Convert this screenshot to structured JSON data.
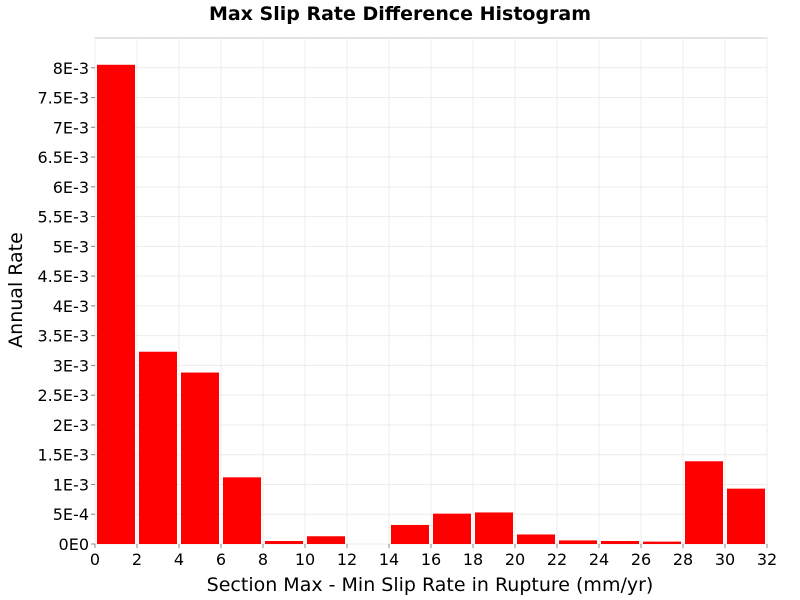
{
  "chart_data": {
    "type": "bar",
    "title": "Max Slip Rate Difference Histogram",
    "xlabel": "Section Max - Min Slip Rate in Rupture (mm/yr)",
    "ylabel": "Annual Rate",
    "xlim": [
      0,
      32
    ],
    "ylim": [
      0,
      0.0085
    ],
    "bin_width": 2,
    "bin_centers": [
      1,
      3,
      5,
      7,
      9,
      11,
      13,
      15,
      17,
      19,
      21,
      23,
      25,
      27,
      29,
      31
    ],
    "values": [
      0.00805,
      0.00323,
      0.00288,
      0.00112,
      5e-05,
      0.00013,
      0.0,
      0.00032,
      0.00051,
      0.00053,
      0.00016,
      6e-05,
      5e-05,
      4e-05,
      0.00139,
      0.00093
    ],
    "bar_color": "#ff0000",
    "grid": true,
    "legend": "none",
    "x_ticks": [
      "0",
      "2",
      "4",
      "6",
      "8",
      "10",
      "12",
      "14",
      "16",
      "18",
      "20",
      "22",
      "24",
      "26",
      "28",
      "30",
      "32"
    ],
    "y_ticks": [
      "0E0",
      "5E-4",
      "1E-3",
      "1.5E-3",
      "2E-3",
      "2.5E-3",
      "3E-3",
      "3.5E-3",
      "4E-3",
      "4.5E-3",
      "5E-3",
      "5.5E-3",
      "6E-3",
      "6.5E-3",
      "7E-3",
      "7.5E-3",
      "8E-3"
    ]
  }
}
